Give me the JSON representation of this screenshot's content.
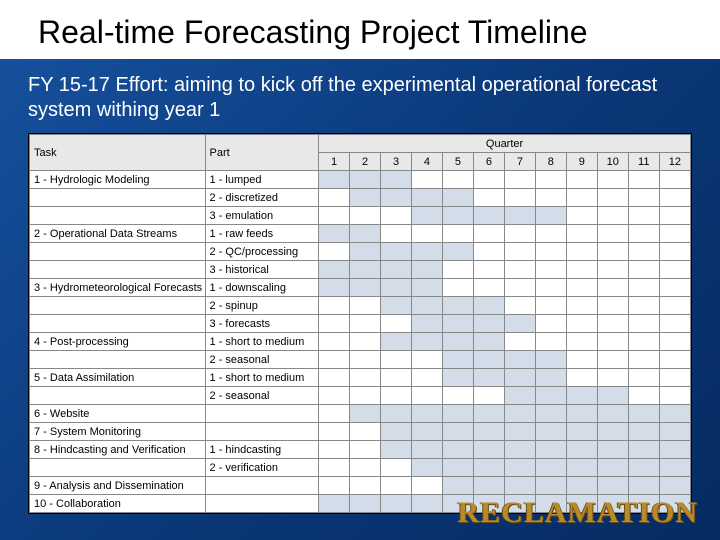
{
  "title": "Real-time Forecasting Project Timeline",
  "subtitle": "FY 15-17 Effort:  aiming to kick off the experimental operational forecast system withing year 1",
  "logo_text": "RECLAMATION",
  "headers": {
    "task": "Task",
    "part": "Part",
    "quarter": "Quarter",
    "quarters": [
      "1",
      "2",
      "3",
      "4",
      "5",
      "6",
      "7",
      "8",
      "9",
      "10",
      "11",
      "12"
    ]
  },
  "colors": {
    "bar_fill": "#d3dde9",
    "header_fill": "#e8e8e8",
    "grid_line": "#888888",
    "slide_bg_start": "#17529f",
    "slide_bg_end": "#062b62",
    "logo_color": "#b88a2a"
  },
  "rows": [
    {
      "task": "1 - Hydrologic Modeling",
      "part": "1 - lumped",
      "bars": [
        1,
        2,
        3
      ]
    },
    {
      "task": "",
      "part": "2 - discretized",
      "bars": [
        2,
        3,
        4,
        5
      ]
    },
    {
      "task": "",
      "part": "3 - emulation",
      "bars": [
        4,
        5,
        6,
        7,
        8
      ]
    },
    {
      "task": "2 - Operational Data Streams",
      "part": "1 - raw feeds",
      "bars": [
        1,
        2
      ]
    },
    {
      "task": "",
      "part": "2 - QC/processing",
      "bars": [
        2,
        3,
        4,
        5
      ]
    },
    {
      "task": "",
      "part": "3 - historical",
      "bars": [
        1,
        2,
        3,
        4
      ]
    },
    {
      "task": "3 - Hydrometeorological Forecasts",
      "part": "1 - downscaling",
      "bars": [
        1,
        2,
        3,
        4
      ]
    },
    {
      "task": "",
      "part": "2 - spinup",
      "bars": [
        3,
        4,
        5,
        6
      ]
    },
    {
      "task": "",
      "part": "3 - forecasts",
      "bars": [
        4,
        5,
        6,
        7
      ]
    },
    {
      "task": "4 - Post-processing",
      "part": "1 - short to medium",
      "bars": [
        3,
        4,
        5,
        6
      ]
    },
    {
      "task": "",
      "part": "2 - seasonal",
      "bars": [
        5,
        6,
        7,
        8
      ]
    },
    {
      "task": "5 - Data Assimilation",
      "part": "1 - short to medium",
      "bars": [
        5,
        6,
        7,
        8
      ]
    },
    {
      "task": "",
      "part": "2 - seasonal",
      "bars": [
        7,
        8,
        9,
        10
      ]
    },
    {
      "task": "6 - Website",
      "part": "",
      "bars": [
        2,
        3,
        4,
        5,
        6,
        7,
        8,
        9,
        10,
        11,
        12
      ]
    },
    {
      "task": "7 - System Monitoring",
      "part": "",
      "bars": [
        3,
        4,
        5,
        6,
        7,
        8,
        9,
        10,
        11,
        12
      ]
    },
    {
      "task": "8 - Hindcasting and Verification",
      "part": "1 - hindcasting",
      "bars": [
        3,
        4,
        5,
        6,
        7,
        8,
        9,
        10,
        11,
        12
      ]
    },
    {
      "task": "",
      "part": "2 - verification",
      "bars": [
        4,
        5,
        6,
        7,
        8,
        9,
        10,
        11,
        12
      ]
    },
    {
      "task": "9 - Analysis and Dissemination",
      "part": "",
      "bars": [
        5,
        6,
        7,
        8,
        9,
        10,
        11,
        12
      ]
    },
    {
      "task": "10 - Collaboration",
      "part": "",
      "bars": [
        1,
        2,
        3,
        4,
        5,
        6,
        7,
        8,
        9,
        10,
        11,
        12
      ]
    }
  ]
}
